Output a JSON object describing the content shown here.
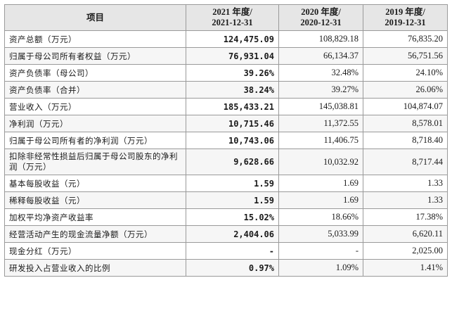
{
  "header": {
    "item": "项目",
    "col_2021_line1": "2021 年度/",
    "col_2021_line2": "2021-12-31",
    "col_2020_line1": "2020 年度/",
    "col_2020_line2": "2020-12-31",
    "col_2019_line1": "2019 年度/",
    "col_2019_line2": "2019-12-31"
  },
  "rows": [
    {
      "label": "资产总额（万元）",
      "v2021": "124,475.09",
      "v2020": "108,829.18",
      "v2019": "76,835.20"
    },
    {
      "label": "归属于母公司所有者权益（万元）",
      "v2021": "76,931.04",
      "v2020": "66,134.37",
      "v2019": "56,751.56"
    },
    {
      "label": "资产负债率（母公司）",
      "v2021": "39.26%",
      "v2020": "32.48%",
      "v2019": "24.10%"
    },
    {
      "label": "资产负债率（合并）",
      "v2021": "38.24%",
      "v2020": "39.27%",
      "v2019": "26.06%"
    },
    {
      "label": "营业收入（万元）",
      "v2021": "185,433.21",
      "v2020": "145,038.81",
      "v2019": "104,874.07"
    },
    {
      "label": "净利润（万元）",
      "v2021": "10,715.46",
      "v2020": "11,372.55",
      "v2019": "8,578.01"
    },
    {
      "label": "归属于母公司所有者的净利润（万元）",
      "v2021": "10,743.06",
      "v2020": "11,406.75",
      "v2019": "8,718.40"
    },
    {
      "label": "扣除非经常性损益后归属于母公司股东的净利润（万元）",
      "v2021": "9,628.66",
      "v2020": "10,032.92",
      "v2019": "8,717.44"
    },
    {
      "label": "基本每股收益（元）",
      "v2021": "1.59",
      "v2020": "1.69",
      "v2019": "1.33"
    },
    {
      "label": "稀释每股收益（元）",
      "v2021": "1.59",
      "v2020": "1.69",
      "v2019": "1.33"
    },
    {
      "label": "加权平均净资产收益率",
      "v2021": "15.02%",
      "v2020": "18.66%",
      "v2019": "17.38%"
    },
    {
      "label": "经营活动产生的现金流量净额（万元）",
      "v2021": "2,404.06",
      "v2020": "5,033.99",
      "v2019": "6,620.11"
    },
    {
      "label": "现金分红（万元）",
      "v2021": "-",
      "v2020": "-",
      "v2019": "2,025.00"
    },
    {
      "label": "研发投入占营业收入的比例",
      "v2021": "0.97%",
      "v2020": "1.09%",
      "v2019": "1.41%"
    }
  ]
}
